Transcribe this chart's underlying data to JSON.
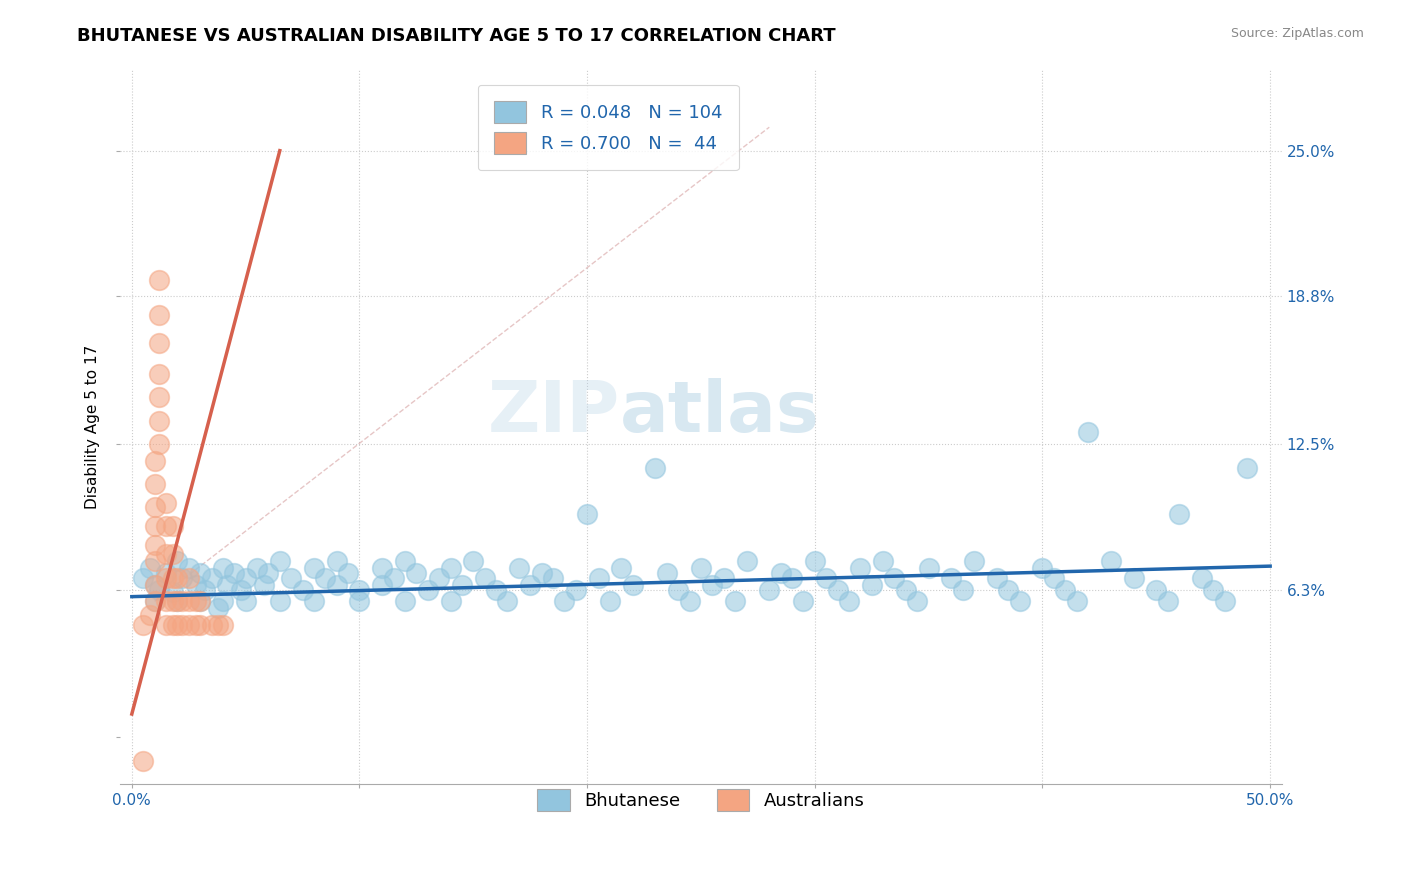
{
  "title": "BHUTANESE VS AUSTRALIAN DISABILITY AGE 5 TO 17 CORRELATION CHART",
  "source": "Source: ZipAtlas.com",
  "ylabel": "Disability Age 5 to 17",
  "xlim": [
    -0.005,
    0.505
  ],
  "ylim": [
    -0.02,
    0.285
  ],
  "ytick_vals": [
    0.0,
    0.063,
    0.125,
    0.188,
    0.25
  ],
  "ytick_labels": [
    "",
    "6.3%",
    "12.5%",
    "18.8%",
    "25.0%"
  ],
  "xtick_vals": [
    0.0,
    0.1,
    0.2,
    0.3,
    0.4,
    0.5
  ],
  "xtick_labels": [
    "0.0%",
    "",
    "",
    "",
    "",
    "50.0%"
  ],
  "watermark_zip": "ZIP",
  "watermark_atlas": "atlas",
  "legend_blue_r": "0.048",
  "legend_blue_n": "104",
  "legend_pink_r": "0.700",
  "legend_pink_n": "44",
  "blue_color": "#92c5de",
  "pink_color": "#f4a582",
  "blue_line_color": "#2166ac",
  "pink_line_color": "#d6604d",
  "dash_line_color": "#d6a0a0",
  "grid_color": "#cccccc",
  "background_color": "#ffffff",
  "title_fontsize": 13,
  "label_fontsize": 11,
  "tick_fontsize": 11,
  "blue_scatter": [
    [
      0.005,
      0.068
    ],
    [
      0.008,
      0.072
    ],
    [
      0.01,
      0.065
    ],
    [
      0.01,
      0.058
    ],
    [
      0.012,
      0.063
    ],
    [
      0.015,
      0.07
    ],
    [
      0.018,
      0.062
    ],
    [
      0.02,
      0.075
    ],
    [
      0.02,
      0.058
    ],
    [
      0.022,
      0.068
    ],
    [
      0.025,
      0.072
    ],
    [
      0.028,
      0.065
    ],
    [
      0.03,
      0.07
    ],
    [
      0.03,
      0.058
    ],
    [
      0.032,
      0.063
    ],
    [
      0.035,
      0.068
    ],
    [
      0.038,
      0.055
    ],
    [
      0.04,
      0.072
    ],
    [
      0.04,
      0.058
    ],
    [
      0.042,
      0.065
    ],
    [
      0.045,
      0.07
    ],
    [
      0.048,
      0.063
    ],
    [
      0.05,
      0.068
    ],
    [
      0.05,
      0.058
    ],
    [
      0.055,
      0.072
    ],
    [
      0.058,
      0.065
    ],
    [
      0.06,
      0.07
    ],
    [
      0.065,
      0.075
    ],
    [
      0.065,
      0.058
    ],
    [
      0.07,
      0.068
    ],
    [
      0.075,
      0.063
    ],
    [
      0.08,
      0.072
    ],
    [
      0.08,
      0.058
    ],
    [
      0.085,
      0.068
    ],
    [
      0.09,
      0.065
    ],
    [
      0.09,
      0.075
    ],
    [
      0.095,
      0.07
    ],
    [
      0.1,
      0.063
    ],
    [
      0.1,
      0.058
    ],
    [
      0.11,
      0.072
    ],
    [
      0.11,
      0.065
    ],
    [
      0.115,
      0.068
    ],
    [
      0.12,
      0.058
    ],
    [
      0.12,
      0.075
    ],
    [
      0.125,
      0.07
    ],
    [
      0.13,
      0.063
    ],
    [
      0.135,
      0.068
    ],
    [
      0.14,
      0.058
    ],
    [
      0.14,
      0.072
    ],
    [
      0.145,
      0.065
    ],
    [
      0.15,
      0.075
    ],
    [
      0.155,
      0.068
    ],
    [
      0.16,
      0.063
    ],
    [
      0.165,
      0.058
    ],
    [
      0.17,
      0.072
    ],
    [
      0.175,
      0.065
    ],
    [
      0.18,
      0.07
    ],
    [
      0.185,
      0.068
    ],
    [
      0.19,
      0.058
    ],
    [
      0.195,
      0.063
    ],
    [
      0.2,
      0.095
    ],
    [
      0.205,
      0.068
    ],
    [
      0.21,
      0.058
    ],
    [
      0.215,
      0.072
    ],
    [
      0.22,
      0.065
    ],
    [
      0.23,
      0.115
    ],
    [
      0.235,
      0.07
    ],
    [
      0.24,
      0.063
    ],
    [
      0.245,
      0.058
    ],
    [
      0.25,
      0.072
    ],
    [
      0.255,
      0.065
    ],
    [
      0.26,
      0.068
    ],
    [
      0.265,
      0.058
    ],
    [
      0.27,
      0.075
    ],
    [
      0.28,
      0.063
    ],
    [
      0.285,
      0.07
    ],
    [
      0.29,
      0.068
    ],
    [
      0.295,
      0.058
    ],
    [
      0.3,
      0.075
    ],
    [
      0.305,
      0.068
    ],
    [
      0.31,
      0.063
    ],
    [
      0.315,
      0.058
    ],
    [
      0.32,
      0.072
    ],
    [
      0.325,
      0.065
    ],
    [
      0.33,
      0.075
    ],
    [
      0.335,
      0.068
    ],
    [
      0.34,
      0.063
    ],
    [
      0.345,
      0.058
    ],
    [
      0.35,
      0.072
    ],
    [
      0.36,
      0.068
    ],
    [
      0.365,
      0.063
    ],
    [
      0.37,
      0.075
    ],
    [
      0.38,
      0.068
    ],
    [
      0.385,
      0.063
    ],
    [
      0.39,
      0.058
    ],
    [
      0.4,
      0.072
    ],
    [
      0.405,
      0.068
    ],
    [
      0.41,
      0.063
    ],
    [
      0.415,
      0.058
    ],
    [
      0.42,
      0.13
    ],
    [
      0.43,
      0.075
    ],
    [
      0.44,
      0.068
    ],
    [
      0.45,
      0.063
    ],
    [
      0.455,
      0.058
    ],
    [
      0.46,
      0.095
    ],
    [
      0.47,
      0.068
    ],
    [
      0.475,
      0.063
    ],
    [
      0.48,
      0.058
    ],
    [
      0.49,
      0.115
    ]
  ],
  "pink_scatter": [
    [
      0.005,
      0.048
    ],
    [
      0.008,
      0.052
    ],
    [
      0.01,
      0.058
    ],
    [
      0.01,
      0.065
    ],
    [
      0.01,
      0.075
    ],
    [
      0.01,
      0.082
    ],
    [
      0.01,
      0.09
    ],
    [
      0.01,
      0.098
    ],
    [
      0.01,
      0.108
    ],
    [
      0.01,
      0.118
    ],
    [
      0.012,
      0.125
    ],
    [
      0.012,
      0.135
    ],
    [
      0.012,
      0.145
    ],
    [
      0.012,
      0.155
    ],
    [
      0.012,
      0.168
    ],
    [
      0.012,
      0.18
    ],
    [
      0.012,
      0.195
    ],
    [
      0.015,
      0.048
    ],
    [
      0.015,
      0.058
    ],
    [
      0.015,
      0.068
    ],
    [
      0.015,
      0.078
    ],
    [
      0.015,
      0.09
    ],
    [
      0.015,
      0.1
    ],
    [
      0.018,
      0.048
    ],
    [
      0.018,
      0.058
    ],
    [
      0.018,
      0.068
    ],
    [
      0.018,
      0.078
    ],
    [
      0.018,
      0.09
    ],
    [
      0.02,
      0.048
    ],
    [
      0.02,
      0.058
    ],
    [
      0.02,
      0.068
    ],
    [
      0.022,
      0.048
    ],
    [
      0.022,
      0.058
    ],
    [
      0.025,
      0.048
    ],
    [
      0.025,
      0.058
    ],
    [
      0.025,
      0.068
    ],
    [
      0.028,
      0.048
    ],
    [
      0.028,
      0.058
    ],
    [
      0.03,
      0.048
    ],
    [
      0.03,
      0.058
    ],
    [
      0.035,
      0.048
    ],
    [
      0.038,
      0.048
    ],
    [
      0.04,
      0.048
    ],
    [
      0.005,
      -0.01
    ]
  ],
  "blue_line_x": [
    0.0,
    0.5
  ],
  "blue_line_y": [
    0.06,
    0.073
  ],
  "pink_line_x": [
    0.0,
    0.065
  ],
  "pink_line_y": [
    0.01,
    0.25
  ],
  "dash_line_x": [
    0.01,
    0.28
  ],
  "dash_line_y": [
    0.058,
    0.26
  ]
}
